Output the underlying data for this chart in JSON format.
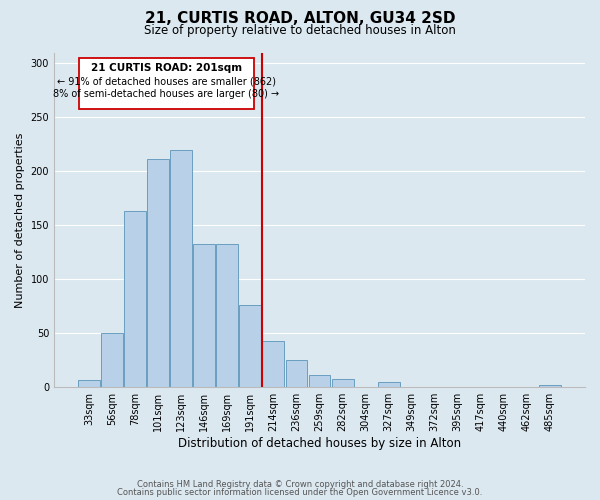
{
  "title": "21, CURTIS ROAD, ALTON, GU34 2SD",
  "subtitle": "Size of property relative to detached houses in Alton",
  "xlabel": "Distribution of detached houses by size in Alton",
  "ylabel": "Number of detached properties",
  "bar_labels": [
    "33sqm",
    "56sqm",
    "78sqm",
    "101sqm",
    "123sqm",
    "146sqm",
    "169sqm",
    "191sqm",
    "214sqm",
    "236sqm",
    "259sqm",
    "282sqm",
    "304sqm",
    "327sqm",
    "349sqm",
    "372sqm",
    "395sqm",
    "417sqm",
    "440sqm",
    "462sqm",
    "485sqm"
  ],
  "bar_heights": [
    7,
    50,
    163,
    211,
    220,
    133,
    133,
    76,
    43,
    25,
    11,
    8,
    0,
    5,
    0,
    0,
    0,
    0,
    0,
    0,
    2
  ],
  "bar_color": "#b8d0e8",
  "bar_edge_color": "#6a9fc0",
  "vline_color": "#cc0000",
  "annotation_title": "21 CURTIS ROAD: 201sqm",
  "annotation_line1": "← 91% of detached houses are smaller (862)",
  "annotation_line2": "8% of semi-detached houses are larger (80) →",
  "annotation_border_color": "#cc0000",
  "ylim": [
    0,
    310
  ],
  "yticks": [
    0,
    50,
    100,
    150,
    200,
    250,
    300
  ],
  "footer_line1": "Contains HM Land Registry data © Crown copyright and database right 2024.",
  "footer_line2": "Contains public sector information licensed under the Open Government Licence v3.0.",
  "bg_color": "#dce8f0",
  "plot_bg_color": "#dce8f0"
}
